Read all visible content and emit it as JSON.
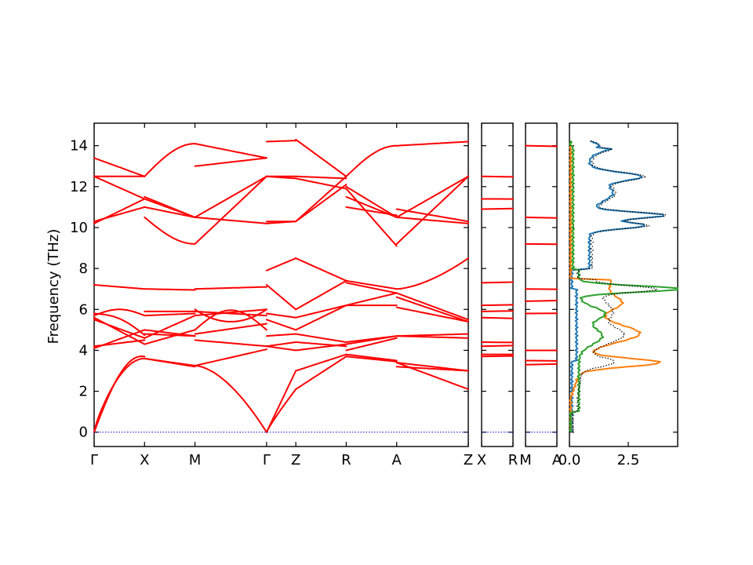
{
  "chart_data": {
    "type": "line",
    "ylabel": "Frequency (THz)",
    "ylim": [
      -0.7,
      15.1
    ],
    "yticks": [
      0,
      2,
      4,
      6,
      8,
      10,
      12,
      14
    ],
    "band_color": "#ff0000",
    "zero_line_color": "#0000cc",
    "panels": [
      {
        "id": "main",
        "path": [
          "Γ",
          "X",
          "M",
          "Γ",
          "Z",
          "R",
          "A",
          "Z"
        ],
        "segments": [
          {
            "from": "Γ",
            "to": "X",
            "length": 1.0
          },
          {
            "from": "X",
            "to": "M",
            "length": 1.0
          },
          {
            "from": "M",
            "to": "Γ",
            "length": 1.42
          },
          {
            "from": "Γ",
            "to": "Z",
            "length": 0.58
          },
          {
            "from": "Z",
            "to": "R",
            "length": 1.0
          },
          {
            "from": "R",
            "to": "A",
            "length": 1.0
          },
          {
            "from": "A",
            "to": "Z",
            "length": 1.42
          }
        ],
        "tick_labels": [
          "Γ",
          "X",
          "M",
          "Γ",
          "Z",
          "R",
          "A",
          "Z"
        ]
      },
      {
        "id": "zx",
        "tick_labels": [
          "X",
          "R"
        ]
      },
      {
        "id": "mx",
        "tick_labels": [
          "M",
          "A"
        ]
      }
    ],
    "dos": {
      "xlim": [
        0,
        4.6
      ],
      "xticks": [
        0.0,
        2.5
      ],
      "xtick_labels": [
        "0.0",
        "2.5"
      ],
      "series": [
        {
          "color": "#1f77b4",
          "style": "solid"
        },
        {
          "color": "#ff7f0e",
          "style": "solid"
        },
        {
          "color": "#2ca02c",
          "style": "solid"
        },
        {
          "color": "#000000",
          "style": "dotted"
        }
      ]
    }
  }
}
